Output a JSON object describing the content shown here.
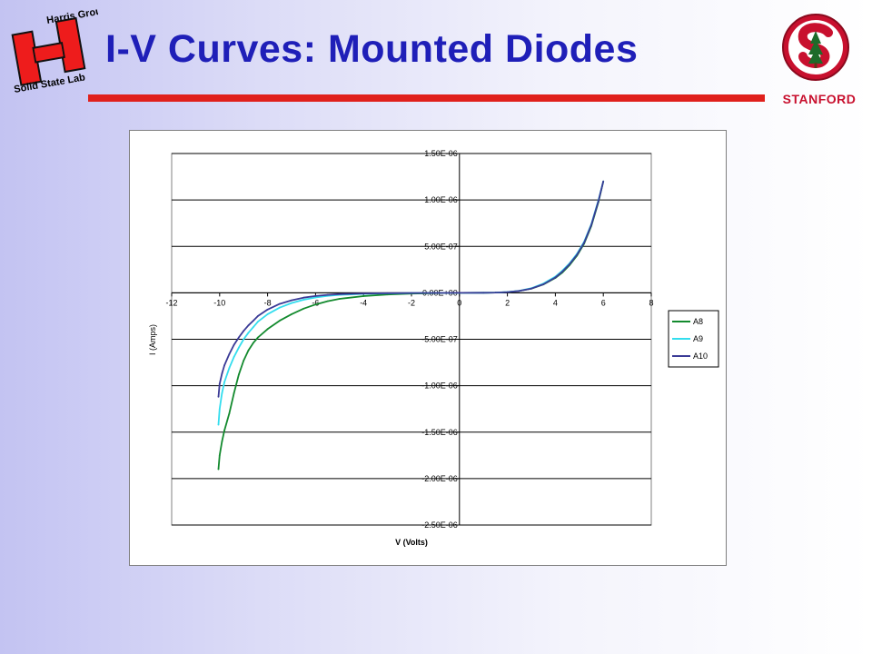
{
  "slide": {
    "title": "I-V Curves: Mounted Diodes",
    "rule_color": "#e0201c",
    "title_color": "#1f1fb8",
    "harris_logo": {
      "icon": "harris-group-h-logo",
      "top_text": "Harris Group",
      "bottom_text": "Solid State Lab",
      "color": "#ee1c1c"
    },
    "stanford_logo": {
      "icon": "stanford-s-tree-logo",
      "text": "STANFORD",
      "color": "#c8102e"
    }
  },
  "chart_data": {
    "type": "line",
    "title": "",
    "xlabel": "V (Volts)",
    "ylabel": "I (Amps)",
    "xlim": [
      -12,
      8
    ],
    "ylim": [
      -2.5e-06,
      1.5e-06
    ],
    "x_ticks": [
      -12,
      -10,
      -8,
      -6,
      -4,
      -2,
      0,
      2,
      4,
      6,
      8
    ],
    "y_ticks": [
      1.5e-06,
      1e-06,
      5e-07,
      0,
      -5e-07,
      -1e-06,
      -1.5e-06,
      -2e-06,
      -2.5e-06
    ],
    "x_tick_labels": [
      "-12",
      "-10",
      "-8",
      "-6",
      "-4",
      "-2",
      "0",
      "2",
      "4",
      "6",
      "8"
    ],
    "y_tick_labels": [
      "1.50E-06",
      "1.00E-06",
      "5.00E-07",
      "0.00E+00",
      "-5.00E-07",
      "-1.00E-06",
      "-1.50E-06",
      "-2.00E-06",
      "-2.50E-06"
    ],
    "grid": true,
    "legend_position": "right",
    "series": [
      {
        "name": "A8",
        "color": "#138a2e",
        "x": [
          -10.05,
          -10.0,
          -9.9,
          -9.8,
          -9.6,
          -9.4,
          -9.2,
          -9.0,
          -8.8,
          -8.6,
          -8.4,
          -8.0,
          -7.5,
          -7.0,
          -6.5,
          -6.0,
          -5.5,
          -5.0,
          -4.0,
          -3.0,
          -2.0,
          -1.0,
          0,
          1.0,
          1.5,
          2.0,
          2.5,
          3.0,
          3.5,
          4.0,
          4.3,
          4.6,
          4.9,
          5.2,
          5.5,
          5.8,
          6.0
        ],
        "y": [
          -1.9e-06,
          -1.75e-06,
          -1.6e-06,
          -1.48e-06,
          -1.3e-06,
          -1.08e-06,
          -8.8e-07,
          -7.3e-07,
          -6.2e-07,
          -5.4e-07,
          -4.8e-07,
          -3.9e-07,
          -3e-07,
          -2.3e-07,
          -1.7e-07,
          -1.25e-07,
          -9e-08,
          -6.5e-08,
          -3.5e-08,
          -1.8e-08,
          -8e-09,
          -3e-09,
          0,
          1e-09,
          3e-09,
          8e-09,
          2e-08,
          4.5e-08,
          9e-08,
          1.6e-07,
          2.2e-07,
          3e-07,
          4e-07,
          5.3e-07,
          7.2e-07,
          9.8e-07,
          1.2e-06
        ]
      },
      {
        "name": "A9",
        "color": "#33ddee",
        "x": [
          -10.05,
          -10.0,
          -9.9,
          -9.8,
          -9.6,
          -9.4,
          -9.2,
          -9.0,
          -8.8,
          -8.6,
          -8.4,
          -8.0,
          -7.5,
          -7.0,
          -6.5,
          -6.0,
          -5.5,
          -5.0,
          -4.0,
          -3.0,
          -2.0,
          -1.0,
          0,
          1.0,
          1.5,
          2.0,
          2.5,
          3.0,
          3.5,
          4.0,
          4.3,
          4.6,
          4.9,
          5.2,
          5.5,
          5.8,
          6.0
        ],
        "y": [
          -1.42e-06,
          -1.25e-06,
          -1.08e-06,
          -9.6e-07,
          -8.1e-07,
          -6.9e-07,
          -5.9e-07,
          -5e-07,
          -4.3e-07,
          -3.7e-07,
          -3.1e-07,
          -2.3e-07,
          -1.6e-07,
          -1.1e-07,
          -7.5e-08,
          -5e-08,
          -3.3e-08,
          -2.2e-08,
          -1.1e-08,
          -6e-09,
          -3e-09,
          -1e-09,
          0,
          1e-09,
          3e-09,
          9e-09,
          2.2e-08,
          5e-08,
          1e-07,
          1.75e-07,
          2.4e-07,
          3.2e-07,
          4.2e-07,
          5.5e-07,
          7.4e-07,
          1e-06,
          1.2e-06
        ]
      },
      {
        "name": "A10",
        "color": "#3a3a96",
        "x": [
          -10.05,
          -10.0,
          -9.9,
          -9.8,
          -9.6,
          -9.4,
          -9.2,
          -9.0,
          -8.8,
          -8.6,
          -8.4,
          -8.0,
          -7.5,
          -7.0,
          -6.5,
          -6.0,
          -5.5,
          -5.0,
          -4.0,
          -3.0,
          -2.0,
          -1.0,
          0,
          1.0,
          1.5,
          2.0,
          2.5,
          3.0,
          3.5,
          4.0,
          4.3,
          4.6,
          4.9,
          5.2,
          5.5,
          5.8,
          6.0
        ],
        "y": [
          -1.12e-06,
          -9.8e-07,
          -8.7e-07,
          -7.8e-07,
          -6.6e-07,
          -5.6e-07,
          -4.8e-07,
          -4.1e-07,
          -3.5e-07,
          -3e-07,
          -2.5e-07,
          -1.8e-07,
          -1.2e-07,
          -8e-08,
          -5.2e-08,
          -3.4e-08,
          -2.2e-08,
          -1.4e-08,
          -7e-09,
          -4e-09,
          -2e-09,
          -1e-09,
          0,
          1e-09,
          3e-09,
          8e-09,
          2e-08,
          4.6e-08,
          9.2e-08,
          1.65e-07,
          2.3e-07,
          3.1e-07,
          4.1e-07,
          5.4e-07,
          7.3e-07,
          9.9e-07,
          1.2e-06
        ]
      }
    ]
  }
}
